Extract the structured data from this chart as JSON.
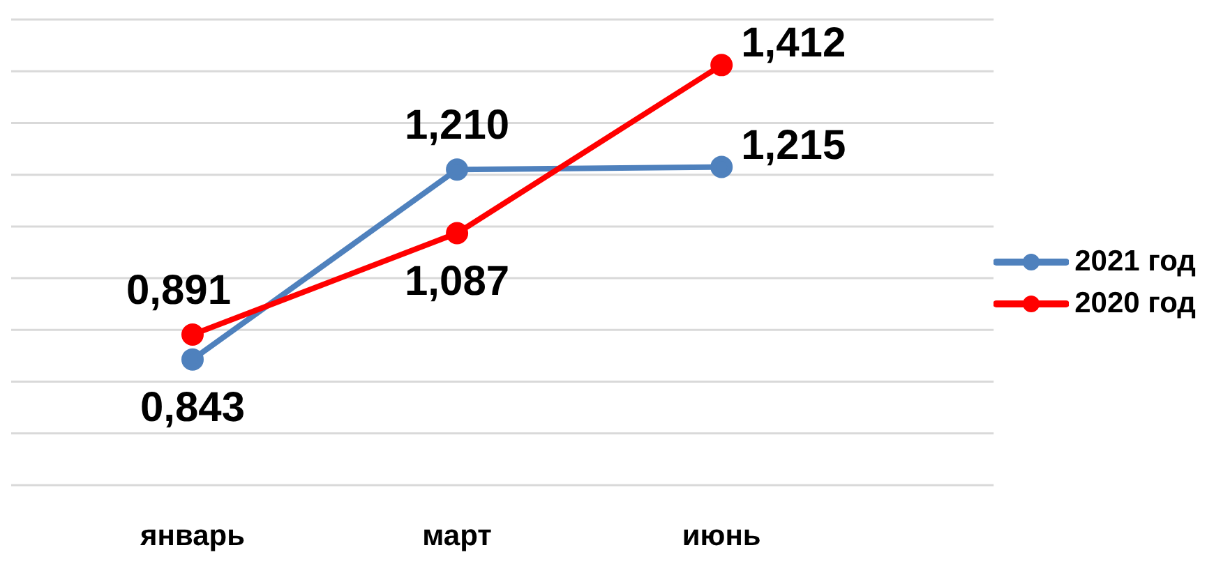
{
  "chart_data": {
    "type": "line",
    "categories": [
      "январь",
      "март",
      "июнь"
    ],
    "series": [
      {
        "name": "2021 год",
        "color": "#4f81bd",
        "values": [
          0.843,
          1.21,
          1.215
        ],
        "value_labels": [
          "0,843",
          "1,210",
          "1,215"
        ]
      },
      {
        "name": "2020 год",
        "color": "#ff0000",
        "values": [
          0.891,
          1.087,
          1.412
        ],
        "value_labels": [
          "0,891",
          "1,087",
          "1,412"
        ]
      }
    ],
    "ylim": [
      0.6,
      1.5
    ],
    "yticks": [
      {
        "value": 0.6,
        "label": null
      },
      {
        "value": 0.7,
        "label": null
      },
      {
        "value": 0.8,
        "label": null
      },
      {
        "value": 0.9,
        "label": null
      },
      {
        "value": 1.0,
        "label": null
      },
      {
        "value": 1.1,
        "label": null
      },
      {
        "value": 1.2,
        "label": null
      },
      {
        "value": 1.3,
        "label": null
      },
      {
        "value": 1.4,
        "label": null
      },
      {
        "value": 1.5,
        "label": null
      }
    ],
    "tick_labels": "x",
    "grid": "y",
    "legend": "right",
    "marker": "circle",
    "line_style": "solid"
  }
}
